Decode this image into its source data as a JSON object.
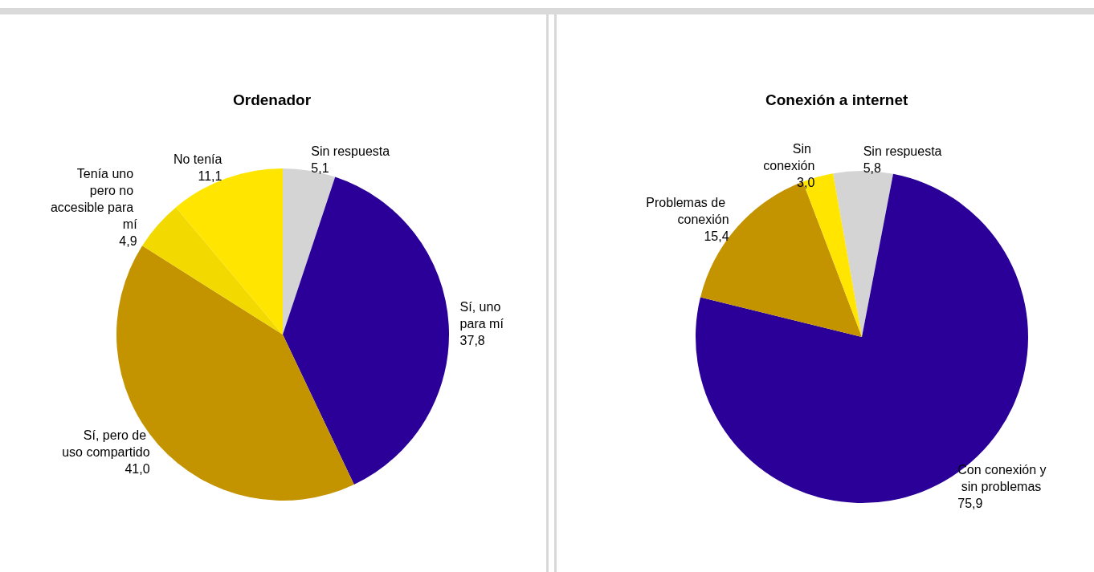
{
  "chart_data": [
    {
      "type": "pie",
      "title": "Ordenador",
      "categories": [
        "Sin respuesta",
        "Sí, uno para mí",
        "Sí, pero de uso compartido",
        "Tenía uno pero no accesible para mí",
        "No tenía"
      ],
      "values": [
        5.1,
        37.8,
        41.0,
        4.9,
        11.1
      ],
      "value_labels": [
        "5,1",
        "37,8",
        "41,0",
        "4,9",
        "11,1"
      ],
      "colors": [
        "#d4d4d4",
        "#2a0099",
        "#c49300",
        "#f2da00",
        "#ffe500"
      ]
    },
    {
      "type": "pie",
      "title": "Conexión a internet",
      "categories": [
        "Sin respuesta",
        "Con conexión y sin problemas",
        "Problemas de conexión",
        "Sin conexión"
      ],
      "values": [
        5.8,
        75.9,
        15.4,
        3.0
      ],
      "value_labels": [
        "5,8",
        "75,9",
        "15,4",
        "3,0"
      ],
      "colors": [
        "#d4d4d4",
        "#2a0099",
        "#c49300",
        "#ffe500"
      ]
    }
  ]
}
